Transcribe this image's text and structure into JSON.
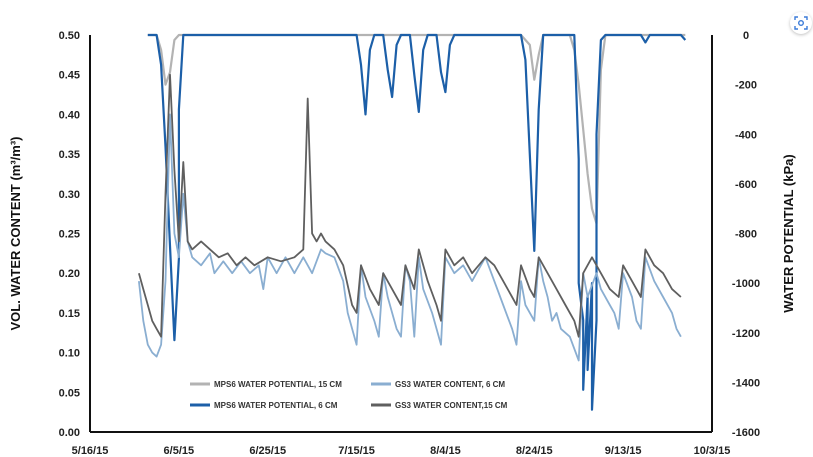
{
  "chart_data": {
    "type": "line",
    "left_axis": {
      "label": "VOL. WATER CONTENT (m³/m³)",
      "ylim": [
        0,
        0.5
      ],
      "ticks": [
        "0.00",
        "0.05",
        "0.10",
        "0.15",
        "0.20",
        "0.25",
        "0.30",
        "0.35",
        "0.40",
        "0.45",
        "0.50"
      ]
    },
    "right_axis": {
      "label": "WATER POTENTIAL (kPa)",
      "ylim": [
        -1600,
        0
      ],
      "ticks": [
        "0",
        "-200",
        "-400",
        "-600",
        "-800",
        "-1000",
        "-1200",
        "-1400",
        "-1600"
      ]
    },
    "x_axis": {
      "xlim": [
        "2015-05-16",
        "2015-10-03"
      ],
      "ticks": [
        "5/16/15",
        "6/5/15",
        "6/25/15",
        "7/15/15",
        "8/4/15",
        "8/24/15",
        "9/13/15",
        "10/3/15"
      ]
    },
    "legend": {
      "placement": "bottom-center",
      "items": [
        {
          "label": "MPS6 WATER POTENTIAL, 15 CM",
          "series": "mps6_15"
        },
        {
          "label": "GS3 WATER CONTENT, 6 CM",
          "series": "gs3_6"
        },
        {
          "label": "MPS6 WATER POTENTIAL, 6 CM",
          "series": "mps6_6"
        },
        {
          "label": "GS3 WATER CONTENT,15 CM",
          "series": "gs3_15"
        }
      ]
    },
    "series": [
      {
        "id": "mps6_15",
        "axis": "right",
        "color": "#b3b3b3",
        "width": 2.2,
        "points": [
          [
            "2015-05-29",
            0
          ],
          [
            "2015-05-31",
            0
          ],
          [
            "2015-06-01",
            -60
          ],
          [
            "2015-06-02",
            -200
          ],
          [
            "2015-06-03",
            -150
          ],
          [
            "2015-06-04",
            -20
          ],
          [
            "2015-06-05",
            0
          ],
          [
            "2015-08-21",
            0
          ],
          [
            "2015-08-23",
            -40
          ],
          [
            "2015-08-24",
            -180
          ],
          [
            "2015-08-25",
            -80
          ],
          [
            "2015-08-26",
            0
          ],
          [
            "2015-09-01",
            0
          ],
          [
            "2015-09-02",
            -60
          ],
          [
            "2015-09-03",
            -200
          ],
          [
            "2015-09-04",
            -380
          ],
          [
            "2015-09-05",
            -560
          ],
          [
            "2015-09-06",
            -700
          ],
          [
            "2015-09-07",
            -760
          ],
          [
            "2015-09-08",
            -140
          ],
          [
            "2015-09-09",
            0
          ],
          [
            "2015-09-27",
            0
          ]
        ]
      },
      {
        "id": "mps6_6",
        "axis": "right",
        "color": "#1c5fa8",
        "width": 2.2,
        "points": [
          [
            "2015-05-29",
            0
          ],
          [
            "2015-05-31",
            0
          ],
          [
            "2015-06-01",
            -120
          ],
          [
            "2015-06-02",
            -450
          ],
          [
            "2015-06-03",
            -850
          ],
          [
            "2015-06-04",
            -1230
          ],
          [
            "2015-06-05",
            -900
          ],
          [
            "2015-06-05",
            -300
          ],
          [
            "2015-06-06",
            0
          ],
          [
            "2015-07-15",
            0
          ],
          [
            "2015-07-16",
            -120
          ],
          [
            "2015-07-17",
            -320
          ],
          [
            "2015-07-18",
            -60
          ],
          [
            "2015-07-19",
            0
          ],
          [
            "2015-07-21",
            0
          ],
          [
            "2015-07-22",
            -140
          ],
          [
            "2015-07-23",
            -250
          ],
          [
            "2015-07-24",
            -40
          ],
          [
            "2015-07-25",
            0
          ],
          [
            "2015-07-27",
            0
          ],
          [
            "2015-07-28",
            -160
          ],
          [
            "2015-07-29",
            -310
          ],
          [
            "2015-07-30",
            -60
          ],
          [
            "2015-07-31",
            0
          ],
          [
            "2015-08-02",
            0
          ],
          [
            "2015-08-03",
            -150
          ],
          [
            "2015-08-04",
            -230
          ],
          [
            "2015-08-05",
            -40
          ],
          [
            "2015-08-06",
            0
          ],
          [
            "2015-08-21",
            0
          ],
          [
            "2015-08-22",
            -100
          ],
          [
            "2015-08-23",
            -480
          ],
          [
            "2015-08-24",
            -870
          ],
          [
            "2015-08-25",
            -300
          ],
          [
            "2015-08-26",
            0
          ],
          [
            "2015-09-02",
            0
          ],
          [
            "2015-09-03",
            -500
          ],
          [
            "2015-09-03",
            -1000
          ],
          [
            "2015-09-04",
            -1150
          ],
          [
            "2015-09-04",
            -1430
          ],
          [
            "2015-09-05",
            -1050
          ],
          [
            "2015-09-05",
            -1350
          ],
          [
            "2015-09-06",
            -1000
          ],
          [
            "2015-09-06",
            -1510
          ],
          [
            "2015-09-07",
            -1150
          ],
          [
            "2015-09-07",
            -400
          ],
          [
            "2015-09-08",
            -20
          ],
          [
            "2015-09-09",
            0
          ],
          [
            "2015-09-17",
            0
          ],
          [
            "2015-09-18",
            -30
          ],
          [
            "2015-09-19",
            0
          ],
          [
            "2015-09-26",
            0
          ],
          [
            "2015-09-27",
            -20
          ]
        ]
      },
      {
        "id": "gs3_6",
        "axis": "left",
        "color": "#8aaed1",
        "width": 1.8,
        "points": [
          [
            "2015-05-27",
            0.19
          ],
          [
            "2015-05-28",
            0.14
          ],
          [
            "2015-05-29",
            0.11
          ],
          [
            "2015-05-30",
            0.1
          ],
          [
            "2015-05-31",
            0.095
          ],
          [
            "2015-06-01",
            0.11
          ],
          [
            "2015-06-02",
            0.19
          ],
          [
            "2015-06-03",
            0.4
          ],
          [
            "2015-06-04",
            0.25
          ],
          [
            "2015-06-05",
            0.22
          ],
          [
            "2015-06-06",
            0.3
          ],
          [
            "2015-06-07",
            0.24
          ],
          [
            "2015-06-08",
            0.22
          ],
          [
            "2015-06-10",
            0.21
          ],
          [
            "2015-06-12",
            0.225
          ],
          [
            "2015-06-13",
            0.2
          ],
          [
            "2015-06-15",
            0.215
          ],
          [
            "2015-06-17",
            0.2
          ],
          [
            "2015-06-19",
            0.215
          ],
          [
            "2015-06-21",
            0.2
          ],
          [
            "2015-06-23",
            0.21
          ],
          [
            "2015-06-24",
            0.18
          ],
          [
            "2015-06-25",
            0.22
          ],
          [
            "2015-06-27",
            0.2
          ],
          [
            "2015-06-29",
            0.22
          ],
          [
            "2015-07-01",
            0.2
          ],
          [
            "2015-07-03",
            0.22
          ],
          [
            "2015-07-05",
            0.2
          ],
          [
            "2015-07-07",
            0.23
          ],
          [
            "2015-07-08",
            0.225
          ],
          [
            "2015-07-10",
            0.22
          ],
          [
            "2015-07-12",
            0.19
          ],
          [
            "2015-07-13",
            0.15
          ],
          [
            "2015-07-15",
            0.11
          ],
          [
            "2015-07-16",
            0.21
          ],
          [
            "2015-07-17",
            0.17
          ],
          [
            "2015-07-19",
            0.14
          ],
          [
            "2015-07-20",
            0.12
          ],
          [
            "2015-07-21",
            0.2
          ],
          [
            "2015-07-22",
            0.17
          ],
          [
            "2015-07-24",
            0.13
          ],
          [
            "2015-07-25",
            0.12
          ],
          [
            "2015-07-26",
            0.21
          ],
          [
            "2015-07-27",
            0.19
          ],
          [
            "2015-07-28",
            0.12
          ],
          [
            "2015-07-29",
            0.22
          ],
          [
            "2015-07-30",
            0.18
          ],
          [
            "2015-08-01",
            0.15
          ],
          [
            "2015-08-03",
            0.11
          ],
          [
            "2015-08-04",
            0.22
          ],
          [
            "2015-08-06",
            0.2
          ],
          [
            "2015-08-08",
            0.21
          ],
          [
            "2015-08-10",
            0.19
          ],
          [
            "2015-08-13",
            0.22
          ],
          [
            "2015-08-15",
            0.19
          ],
          [
            "2015-08-17",
            0.16
          ],
          [
            "2015-08-19",
            0.13
          ],
          [
            "2015-08-20",
            0.11
          ],
          [
            "2015-08-21",
            0.19
          ],
          [
            "2015-08-22",
            0.16
          ],
          [
            "2015-08-24",
            0.14
          ],
          [
            "2015-08-25",
            0.22
          ],
          [
            "2015-08-26",
            0.19
          ],
          [
            "2015-08-27",
            0.17
          ],
          [
            "2015-08-28",
            0.14
          ],
          [
            "2015-08-29",
            0.15
          ],
          [
            "2015-08-30",
            0.13
          ],
          [
            "2015-09-01",
            0.12
          ],
          [
            "2015-09-03",
            0.09
          ],
          [
            "2015-09-04",
            0.2
          ],
          [
            "2015-09-05",
            0.17
          ],
          [
            "2015-09-07",
            0.2
          ],
          [
            "2015-09-08",
            0.18
          ],
          [
            "2015-09-10",
            0.16
          ],
          [
            "2015-09-11",
            0.15
          ],
          [
            "2015-09-12",
            0.13
          ],
          [
            "2015-09-13",
            0.2
          ],
          [
            "2015-09-15",
            0.17
          ],
          [
            "2015-09-16",
            0.14
          ],
          [
            "2015-09-17",
            0.13
          ],
          [
            "2015-09-18",
            0.22
          ],
          [
            "2015-09-20",
            0.19
          ],
          [
            "2015-09-22",
            0.17
          ],
          [
            "2015-09-24",
            0.15
          ],
          [
            "2015-09-25",
            0.13
          ],
          [
            "2015-09-26",
            0.12
          ]
        ]
      },
      {
        "id": "gs3_15",
        "axis": "left",
        "color": "#5f5f5f",
        "width": 1.8,
        "points": [
          [
            "2015-05-27",
            0.2
          ],
          [
            "2015-05-28",
            0.18
          ],
          [
            "2015-05-29",
            0.16
          ],
          [
            "2015-05-30",
            0.14
          ],
          [
            "2015-05-31",
            0.13
          ],
          [
            "2015-06-01",
            0.12
          ],
          [
            "2015-06-02",
            0.3
          ],
          [
            "2015-06-03",
            0.45
          ],
          [
            "2015-06-04",
            0.33
          ],
          [
            "2015-06-05",
            0.24
          ],
          [
            "2015-06-06",
            0.34
          ],
          [
            "2015-06-07",
            0.24
          ],
          [
            "2015-06-08",
            0.23
          ],
          [
            "2015-06-10",
            0.24
          ],
          [
            "2015-06-12",
            0.23
          ],
          [
            "2015-06-14",
            0.22
          ],
          [
            "2015-06-16",
            0.225
          ],
          [
            "2015-06-18",
            0.21
          ],
          [
            "2015-06-20",
            0.22
          ],
          [
            "2015-06-22",
            0.21
          ],
          [
            "2015-06-25",
            0.22
          ],
          [
            "2015-06-28",
            0.215
          ],
          [
            "2015-07-01",
            0.22
          ],
          [
            "2015-07-03",
            0.23
          ],
          [
            "2015-07-04",
            0.42
          ],
          [
            "2015-07-05",
            0.25
          ],
          [
            "2015-07-06",
            0.24
          ],
          [
            "2015-07-07",
            0.25
          ],
          [
            "2015-07-08",
            0.24
          ],
          [
            "2015-07-10",
            0.23
          ],
          [
            "2015-07-12",
            0.21
          ],
          [
            "2015-07-14",
            0.16
          ],
          [
            "2015-07-15",
            0.15
          ],
          [
            "2015-07-16",
            0.21
          ],
          [
            "2015-07-18",
            0.18
          ],
          [
            "2015-07-20",
            0.16
          ],
          [
            "2015-07-21",
            0.2
          ],
          [
            "2015-07-23",
            0.18
          ],
          [
            "2015-07-25",
            0.16
          ],
          [
            "2015-07-26",
            0.21
          ],
          [
            "2015-07-28",
            0.18
          ],
          [
            "2015-07-29",
            0.23
          ],
          [
            "2015-07-31",
            0.19
          ],
          [
            "2015-08-02",
            0.16
          ],
          [
            "2015-08-03",
            0.14
          ],
          [
            "2015-08-04",
            0.23
          ],
          [
            "2015-08-06",
            0.21
          ],
          [
            "2015-08-08",
            0.22
          ],
          [
            "2015-08-10",
            0.2
          ],
          [
            "2015-08-13",
            0.22
          ],
          [
            "2015-08-15",
            0.21
          ],
          [
            "2015-08-17",
            0.19
          ],
          [
            "2015-08-19",
            0.17
          ],
          [
            "2015-08-20",
            0.16
          ],
          [
            "2015-08-21",
            0.21
          ],
          [
            "2015-08-23",
            0.18
          ],
          [
            "2015-08-24",
            0.17
          ],
          [
            "2015-08-25",
            0.22
          ],
          [
            "2015-08-27",
            0.2
          ],
          [
            "2015-08-29",
            0.18
          ],
          [
            "2015-08-31",
            0.16
          ],
          [
            "2015-09-02",
            0.14
          ],
          [
            "2015-09-03",
            0.12
          ],
          [
            "2015-09-04",
            0.2
          ],
          [
            "2015-09-06",
            0.22
          ],
          [
            "2015-09-08",
            0.2
          ],
          [
            "2015-09-10",
            0.18
          ],
          [
            "2015-09-12",
            0.17
          ],
          [
            "2015-09-13",
            0.21
          ],
          [
            "2015-09-15",
            0.19
          ],
          [
            "2015-09-17",
            0.17
          ],
          [
            "2015-09-18",
            0.23
          ],
          [
            "2015-09-20",
            0.21
          ],
          [
            "2015-09-22",
            0.2
          ],
          [
            "2015-09-24",
            0.18
          ],
          [
            "2015-09-26",
            0.17
          ]
        ]
      }
    ]
  },
  "toolbar": {
    "lens_icon": "lens-icon"
  }
}
